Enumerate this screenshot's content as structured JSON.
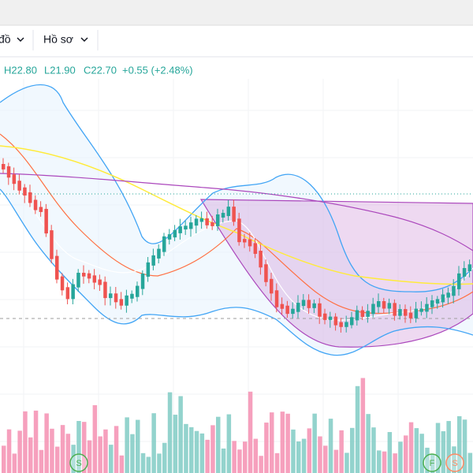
{
  "toolbar": {
    "items": [
      "đồ",
      "Hồ sơ"
    ]
  },
  "legend": {
    "high": "H22.80",
    "low": "L21.90",
    "close": "C22.70",
    "change": "+0.55 (+2.48%)"
  },
  "markers": [
    "S",
    "F",
    "S"
  ]
}
